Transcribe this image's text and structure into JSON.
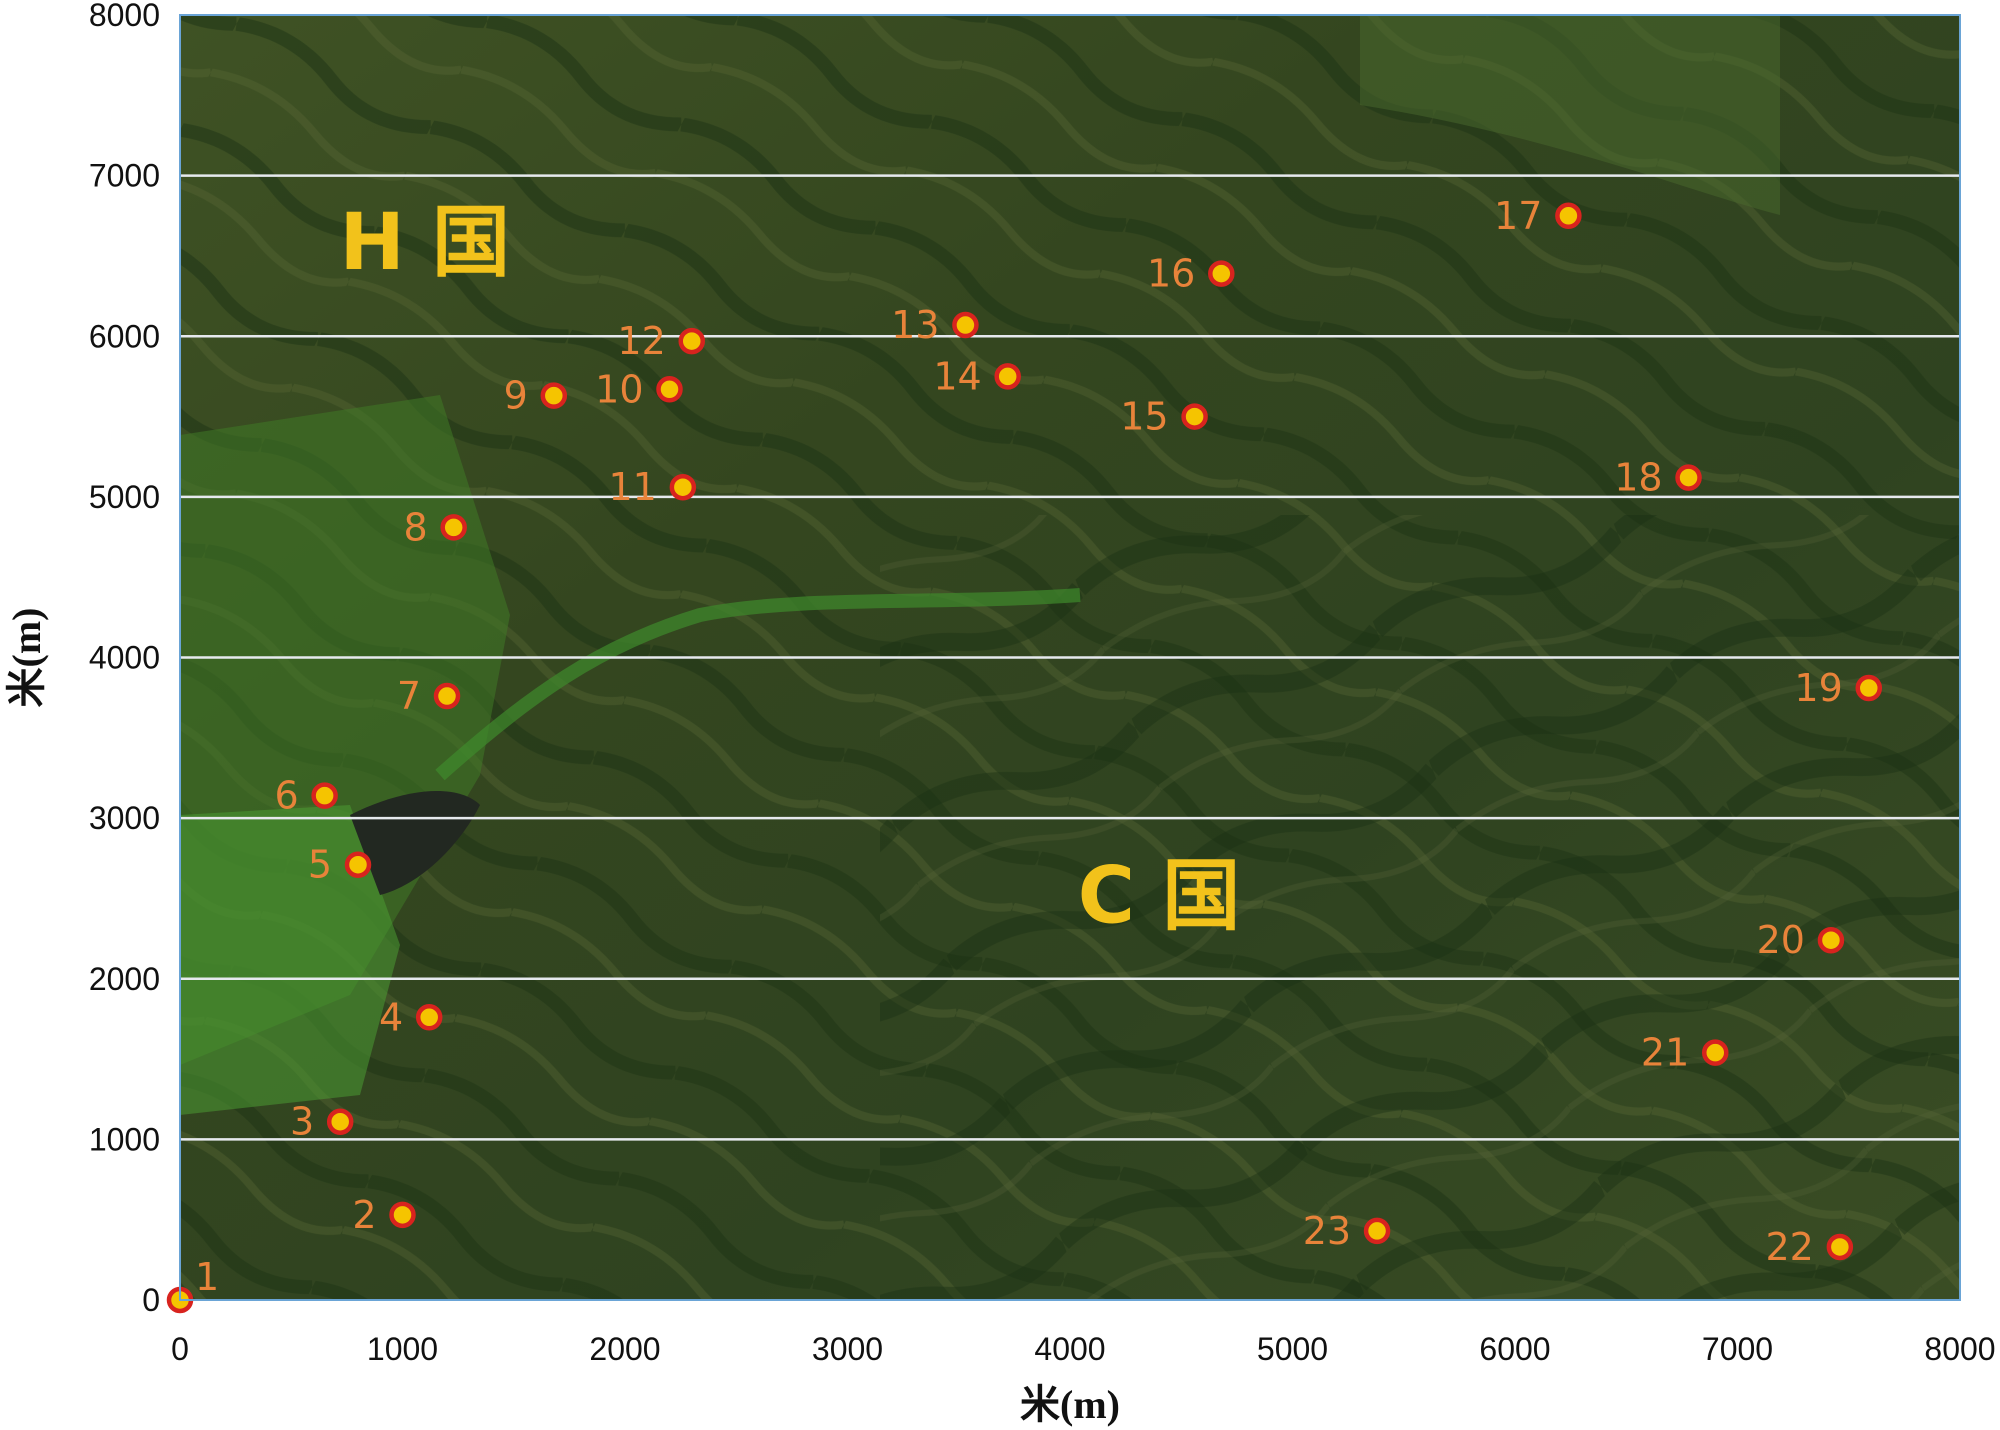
{
  "chart_data": {
    "type": "scatter",
    "xlabel": "米(m)",
    "ylabel": "米(m)",
    "xlim": [
      0,
      8000
    ],
    "ylim": [
      0,
      8000
    ],
    "xticks": [
      0,
      1000,
      2000,
      3000,
      4000,
      5000,
      6000,
      7000,
      8000
    ],
    "yticks": [
      0,
      1000,
      2000,
      3000,
      4000,
      5000,
      6000,
      7000,
      8000
    ],
    "grid": "horizontal",
    "background": "satellite imagery",
    "point_color": "#f5c400",
    "point_outline": "#d8231e",
    "label_color": "#e8833a",
    "region_color": "#f2c21b",
    "regions": [
      {
        "label": "H 国",
        "x": 1100,
        "y": 6420
      },
      {
        "label": "C 国",
        "x": 4400,
        "y": 2350
      }
    ],
    "points": [
      {
        "label": "1",
        "x": 0,
        "y": 0
      },
      {
        "label": "2",
        "x": 1000,
        "y": 530
      },
      {
        "label": "3",
        "x": 720,
        "y": 1110
      },
      {
        "label": "4",
        "x": 1120,
        "y": 1760
      },
      {
        "label": "5",
        "x": 800,
        "y": 2710
      },
      {
        "label": "6",
        "x": 650,
        "y": 3140
      },
      {
        "label": "7",
        "x": 1200,
        "y": 3760
      },
      {
        "label": "8",
        "x": 1230,
        "y": 4810
      },
      {
        "label": "9",
        "x": 1680,
        "y": 5630
      },
      {
        "label": "10",
        "x": 2200,
        "y": 5670
      },
      {
        "label": "11",
        "x": 2260,
        "y": 5060
      },
      {
        "label": "12",
        "x": 2300,
        "y": 5970
      },
      {
        "label": "13",
        "x": 3530,
        "y": 6070
      },
      {
        "label": "14",
        "x": 3720,
        "y": 5750
      },
      {
        "label": "15",
        "x": 4560,
        "y": 5500
      },
      {
        "label": "16",
        "x": 4680,
        "y": 6390
      },
      {
        "label": "17",
        "x": 6240,
        "y": 6750
      },
      {
        "label": "18",
        "x": 6780,
        "y": 5120
      },
      {
        "label": "19",
        "x": 7590,
        "y": 3810
      },
      {
        "label": "20",
        "x": 7420,
        "y": 2240
      },
      {
        "label": "21",
        "x": 6900,
        "y": 1540
      },
      {
        "label": "22",
        "x": 7460,
        "y": 330
      },
      {
        "label": "23",
        "x": 5380,
        "y": 430
      }
    ]
  }
}
